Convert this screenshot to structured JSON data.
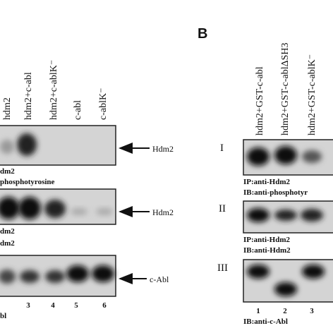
{
  "panel_a": {
    "lanes": [
      "hdm2",
      "hdm2+c-abl",
      "hdm2+c-ablK⁻",
      "c-abl",
      "c-ablK⁻"
    ],
    "blots": [
      {
        "target": "Hdm2",
        "captions": [
          "dm2",
          "phosphotyrosine"
        ]
      },
      {
        "target": "Hdm2",
        "captions": [
          "dm2",
          "dm2"
        ]
      },
      {
        "target": "c-Abl",
        "captions": [
          "bl"
        ]
      }
    ],
    "lane_numbers": [
      "3",
      "4",
      "5",
      "6"
    ]
  },
  "panel_b": {
    "label": "B",
    "lanes": [
      "hdm2+GST-c-abl",
      "hdm2+GST-c-ablΔSH3",
      "hdm2+GST-c-ablK⁻"
    ],
    "blots": [
      {
        "label": "I",
        "captions": [
          "IP:anti-Hdm2",
          "IB:anti-phosphotyr"
        ]
      },
      {
        "label": "II",
        "captions": [
          "IP:anti-Hdm2",
          "IB:anti-Hdm2"
        ]
      },
      {
        "label": "III",
        "captions": [
          "IB:anti-c-Abl"
        ]
      }
    ],
    "lane_numbers": [
      "1",
      "2",
      "3"
    ]
  }
}
